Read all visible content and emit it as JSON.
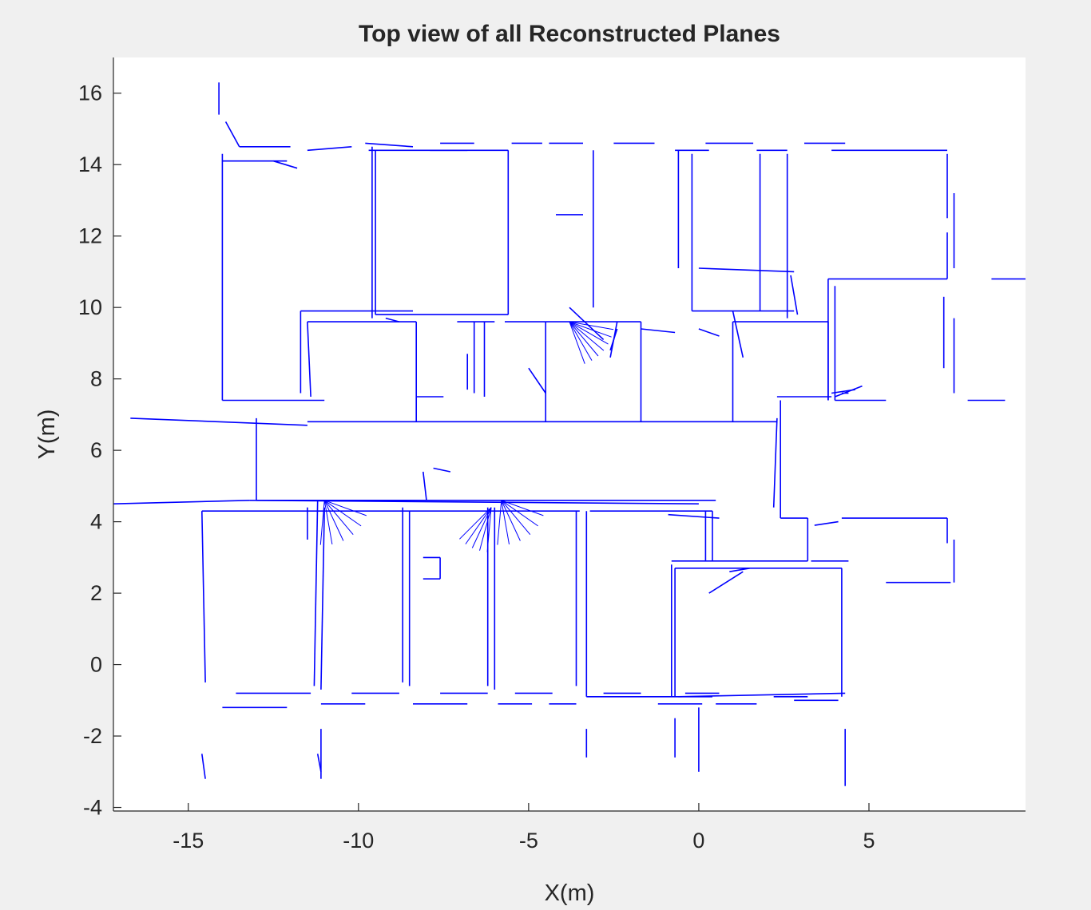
{
  "chart_data": {
    "type": "line",
    "title": "Top view of all Reconstructed Planes",
    "xlabel": "X(m)",
    "ylabel": "Y(m)",
    "xlim": [
      -17.2,
      9.6
    ],
    "ylim": [
      -4.1,
      17.0
    ],
    "xticks": [
      -15,
      -10,
      -5,
      0,
      5
    ],
    "xtick_labels": [
      "-15",
      "-10",
      "-5",
      "0",
      "5"
    ],
    "yticks": [
      -4,
      -2,
      0,
      2,
      4,
      6,
      8,
      10,
      12,
      14,
      16
    ],
    "ytick_labels": [
      "-4",
      "-2",
      "0",
      "2",
      "4",
      "6",
      "8",
      "10",
      "12",
      "14",
      "16"
    ],
    "grid": false,
    "series_color": "#0000ff",
    "segments": [
      [
        -14.1,
        16.3,
        -14.1,
        15.4
      ],
      [
        -13.9,
        15.2,
        -13.5,
        14.5
      ],
      [
        -13.5,
        14.5,
        -12.0,
        14.5
      ],
      [
        -11.5,
        14.4,
        -10.2,
        14.5
      ],
      [
        -9.8,
        14.6,
        -8.4,
        14.5
      ],
      [
        -7.6,
        14.6,
        -6.6,
        14.6
      ],
      [
        -7.9,
        14.4,
        -6.8,
        14.4
      ],
      [
        -5.5,
        14.6,
        -4.6,
        14.6
      ],
      [
        -4.4,
        14.6,
        -3.4,
        14.6
      ],
      [
        -2.5,
        14.6,
        -1.3,
        14.6
      ],
      [
        -0.7,
        14.4,
        0.3,
        14.4
      ],
      [
        0.2,
        14.6,
        1.6,
        14.6
      ],
      [
        1.7,
        14.4,
        2.6,
        14.4
      ],
      [
        3.1,
        14.6,
        4.3,
        14.6
      ],
      [
        3.9,
        14.4,
        7.3,
        14.4
      ],
      [
        -14.0,
        14.1,
        -12.1,
        14.1
      ],
      [
        -12.5,
        14.1,
        -11.8,
        13.9
      ],
      [
        -9.7,
        14.4,
        -5.6,
        14.4
      ],
      [
        -14.0,
        14.3,
        -14.0,
        7.4
      ],
      [
        -14.0,
        7.4,
        -11.0,
        7.4
      ],
      [
        -9.6,
        14.5,
        -9.6,
        9.7
      ],
      [
        -9.5,
        14.4,
        -9.5,
        9.8
      ],
      [
        -5.6,
        14.4,
        -5.6,
        9.8
      ],
      [
        -9.5,
        9.8,
        -5.6,
        9.8
      ],
      [
        -3.1,
        14.4,
        -3.1,
        10.0
      ],
      [
        -4.2,
        12.6,
        -3.4,
        12.6
      ],
      [
        -0.2,
        14.3,
        -0.2,
        9.9
      ],
      [
        -0.2,
        9.9,
        2.8,
        9.9
      ],
      [
        -0.6,
        14.4,
        -0.6,
        11.1
      ],
      [
        0.0,
        11.1,
        2.8,
        11.0
      ],
      [
        1.8,
        14.3,
        1.8,
        9.9
      ],
      [
        2.6,
        14.3,
        2.6,
        9.7
      ],
      [
        2.7,
        10.9,
        2.9,
        9.8
      ],
      [
        7.3,
        14.3,
        7.3,
        12.5
      ],
      [
        7.5,
        13.2,
        7.5,
        11.1
      ],
      [
        7.3,
        12.1,
        7.3,
        10.8
      ],
      [
        7.2,
        10.3,
        7.2,
        8.3
      ],
      [
        7.5,
        9.7,
        7.5,
        7.6
      ],
      [
        8.6,
        10.8,
        9.6,
        10.8
      ],
      [
        3.8,
        10.8,
        7.3,
        10.8
      ],
      [
        3.8,
        10.8,
        3.8,
        7.4
      ],
      [
        4.0,
        10.6,
        4.0,
        7.4
      ],
      [
        3.9,
        7.6,
        4.6,
        7.7
      ],
      [
        4.0,
        7.5,
        4.8,
        7.8
      ],
      [
        4.2,
        7.6,
        4.4,
        7.6
      ],
      [
        7.9,
        7.4,
        9.0,
        7.4
      ],
      [
        4.0,
        7.4,
        5.5,
        7.4
      ],
      [
        -11.7,
        9.9,
        -8.4,
        9.9
      ],
      [
        -11.7,
        9.9,
        -11.7,
        7.6
      ],
      [
        -11.5,
        9.6,
        -11.4,
        7.5
      ],
      [
        -11.5,
        9.6,
        -8.3,
        9.6
      ],
      [
        -8.3,
        9.6,
        -8.3,
        6.8
      ],
      [
        -9.2,
        9.7,
        -8.8,
        9.6
      ],
      [
        -6.6,
        9.6,
        -6.6,
        7.6
      ],
      [
        -6.8,
        8.7,
        -6.8,
        7.7
      ],
      [
        -7.1,
        9.6,
        -6.0,
        9.6
      ],
      [
        -8.3,
        7.5,
        -7.5,
        7.5
      ],
      [
        -6.3,
        9.6,
        -6.3,
        7.5
      ],
      [
        -5.7,
        9.6,
        -4.5,
        9.6
      ],
      [
        -4.5,
        9.6,
        -1.7,
        9.6
      ],
      [
        -4.5,
        9.6,
        -4.5,
        6.8
      ],
      [
        -1.7,
        9.6,
        -1.7,
        6.8
      ],
      [
        -3.8,
        10.0,
        -2.8,
        9.1
      ],
      [
        -2.4,
        9.6,
        -2.6,
        8.6
      ],
      [
        -2.4,
        9.4,
        -2.6,
        8.8
      ],
      [
        -5.0,
        8.3,
        -4.5,
        7.6
      ],
      [
        -1.7,
        9.4,
        -0.7,
        9.3
      ],
      [
        0.0,
        9.4,
        0.6,
        9.2
      ],
      [
        1.0,
        9.6,
        3.8,
        9.6
      ],
      [
        1.0,
        9.6,
        1.0,
        6.8
      ],
      [
        1.0,
        9.9,
        1.3,
        8.6
      ],
      [
        3.8,
        9.6,
        3.8,
        7.4
      ],
      [
        -16.7,
        6.9,
        -11.5,
        6.7
      ],
      [
        -11.5,
        6.8,
        2.3,
        6.8
      ],
      [
        -13.0,
        6.9,
        -13.0,
        4.6
      ],
      [
        -13.0,
        4.6,
        0.5,
        4.6
      ],
      [
        2.4,
        7.4,
        2.4,
        4.1
      ],
      [
        2.3,
        7.5,
        3.9,
        7.5
      ],
      [
        2.3,
        6.9,
        2.2,
        4.4
      ],
      [
        2.4,
        4.1,
        3.2,
        4.1
      ],
      [
        3.2,
        4.1,
        3.2,
        2.9
      ],
      [
        3.4,
        3.9,
        4.1,
        4.0
      ],
      [
        4.2,
        4.1,
        7.3,
        4.1
      ],
      [
        7.3,
        4.1,
        7.3,
        3.4
      ],
      [
        7.5,
        3.5,
        7.5,
        2.3
      ],
      [
        5.5,
        2.3,
        7.4,
        2.3
      ],
      [
        3.3,
        2.9,
        4.4,
        2.9
      ],
      [
        -7.8,
        5.5,
        -7.3,
        5.4
      ],
      [
        -8.1,
        5.4,
        -8.0,
        4.6
      ],
      [
        -17.2,
        4.5,
        -13.2,
        4.6
      ],
      [
        -13.2,
        4.6,
        0.0,
        4.5
      ],
      [
        -14.6,
        4.3,
        -3.5,
        4.3
      ],
      [
        -3.2,
        4.3,
        0.4,
        4.3
      ],
      [
        -14.6,
        4.3,
        -14.5,
        -0.5
      ],
      [
        -14.6,
        -2.5,
        -14.5,
        -3.2
      ],
      [
        -11.2,
        4.6,
        -11.3,
        -0.6
      ],
      [
        -11.0,
        4.4,
        -11.1,
        -0.7
      ],
      [
        -11.5,
        4.4,
        -11.5,
        3.5
      ],
      [
        -8.7,
        4.4,
        -8.7,
        -0.5
      ],
      [
        -8.5,
        4.3,
        -8.5,
        -0.6
      ],
      [
        -6.2,
        4.4,
        -6.2,
        -0.6
      ],
      [
        -6.0,
        4.4,
        -6.0,
        -0.7
      ],
      [
        -3.6,
        4.3,
        -3.6,
        -0.6
      ],
      [
        -3.3,
        4.3,
        -3.3,
        -0.9
      ],
      [
        -3.3,
        -0.9,
        0.4,
        -0.9
      ],
      [
        -8.1,
        3.0,
        -7.6,
        3.0
      ],
      [
        -7.6,
        3.0,
        -7.6,
        2.4
      ],
      [
        -8.1,
        2.4,
        -7.6,
        2.4
      ],
      [
        0.2,
        4.3,
        0.2,
        2.9
      ],
      [
        0.4,
        4.3,
        0.4,
        2.9
      ],
      [
        -0.9,
        4.2,
        0.6,
        4.1
      ],
      [
        -0.8,
        2.9,
        3.2,
        2.9
      ],
      [
        -0.8,
        2.8,
        -0.8,
        -0.9
      ],
      [
        -0.7,
        2.7,
        4.2,
        2.7
      ],
      [
        -0.7,
        2.7,
        -0.7,
        -0.9
      ],
      [
        4.2,
        2.7,
        4.2,
        -0.9
      ],
      [
        -0.6,
        -0.9,
        4.3,
        -0.8
      ],
      [
        0.3,
        2.0,
        1.3,
        2.6
      ],
      [
        0.9,
        2.6,
        1.5,
        2.7
      ],
      [
        -13.6,
        -0.8,
        -11.4,
        -0.8
      ],
      [
        -14.0,
        -1.2,
        -12.1,
        -1.2
      ],
      [
        -11.1,
        -1.1,
        -9.8,
        -1.1
      ],
      [
        -10.2,
        -0.8,
        -8.8,
        -0.8
      ],
      [
        -8.4,
        -1.1,
        -6.8,
        -1.1
      ],
      [
        -7.6,
        -0.8,
        -6.2,
        -0.8
      ],
      [
        -5.9,
        -1.1,
        -4.9,
        -1.1
      ],
      [
        -5.4,
        -0.8,
        -4.3,
        -0.8
      ],
      [
        -4.4,
        -1.1,
        -3.6,
        -1.1
      ],
      [
        -2.8,
        -0.8,
        -1.7,
        -0.8
      ],
      [
        -1.2,
        -1.1,
        0.1,
        -1.1
      ],
      [
        -0.4,
        -0.8,
        0.6,
        -0.8
      ],
      [
        0.5,
        -1.1,
        1.7,
        -1.1
      ],
      [
        2.2,
        -0.9,
        3.2,
        -0.9
      ],
      [
        2.8,
        -1.0,
        4.1,
        -1.0
      ],
      [
        -11.1,
        -1.8,
        -11.1,
        -3.2
      ],
      [
        -11.2,
        -2.5,
        -11.1,
        -3.0
      ],
      [
        -3.3,
        -1.8,
        -3.3,
        -2.6
      ],
      [
        -0.7,
        -1.5,
        -0.7,
        -2.6
      ],
      [
        0.0,
        -1.2,
        0.0,
        -3.0
      ],
      [
        4.3,
        -1.8,
        4.3,
        -3.4
      ]
    ],
    "fans": [
      {
        "origin": [
          -3.8,
          9.6
        ],
        "angles": [
          -10,
          -20,
          -30,
          -40,
          -50,
          -60,
          -70
        ]
      },
      {
        "origin": [
          -11.0,
          4.6
        ],
        "angles": [
          -20,
          -35,
          -50,
          -65,
          -80,
          -95
        ]
      },
      {
        "origin": [
          -6.1,
          4.4
        ],
        "angles": [
          -95,
          -105,
          -115,
          -125,
          -135
        ]
      },
      {
        "origin": [
          -5.8,
          4.6
        ],
        "angles": [
          -20,
          -35,
          -50,
          -65,
          -80,
          -95
        ]
      }
    ]
  }
}
